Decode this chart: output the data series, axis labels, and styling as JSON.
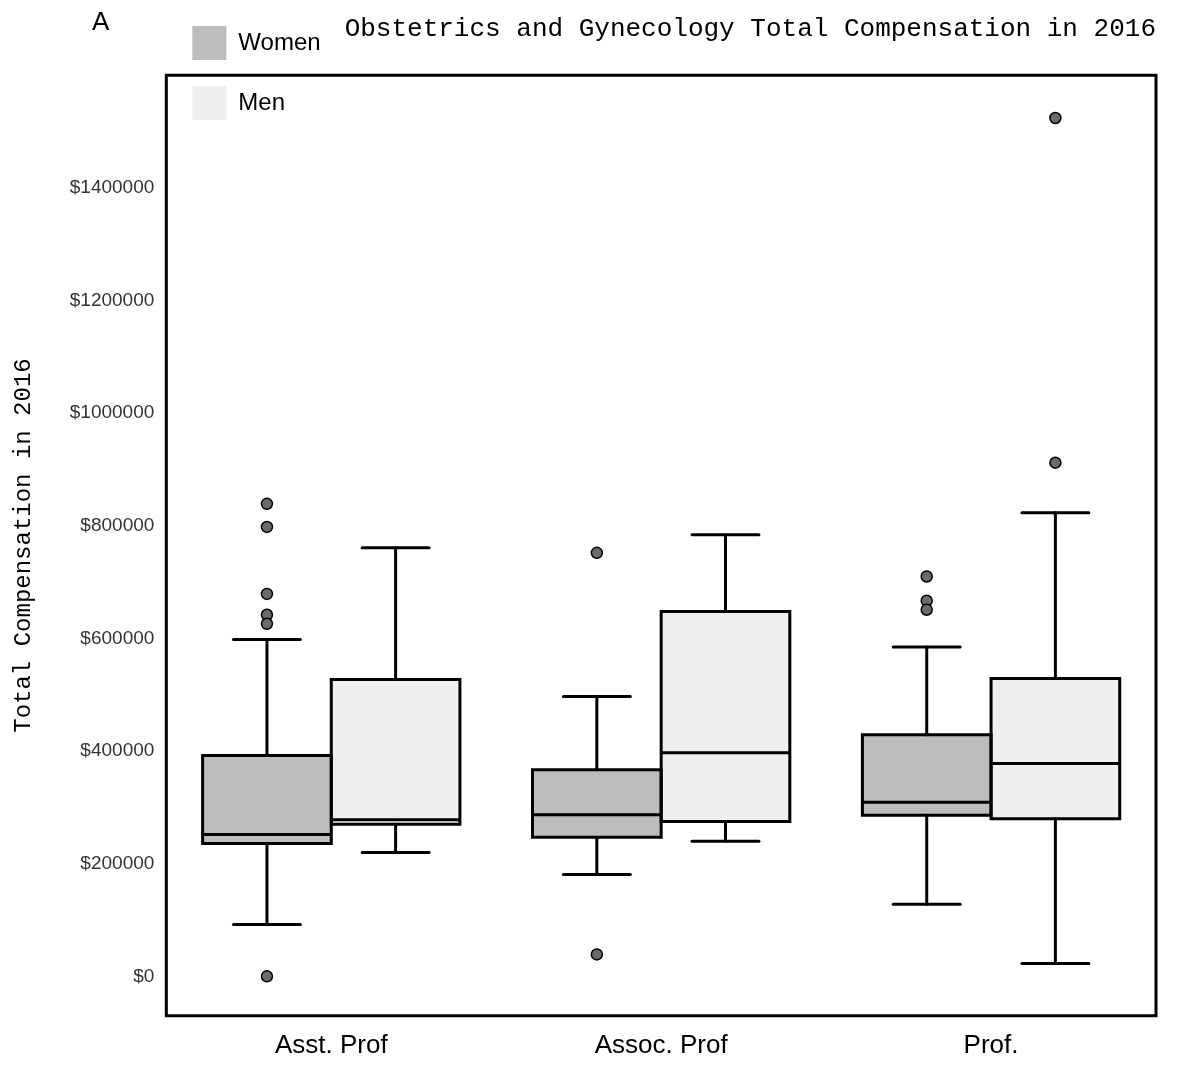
{
  "chart_data": {
    "type": "box",
    "title": "Obstetrics and Gynecology Total Compensation in 2016",
    "ylabel": "Total Compensation in 2016",
    "annotations": [
      "A"
    ],
    "categories": [
      "Asst. Prof",
      "Assoc. Prof",
      "Prof."
    ],
    "series": [
      {
        "name": "Women",
        "color": "#bdbdbd",
        "boxes": [
          {
            "low": 92000,
            "q1": 236000,
            "median": 252000,
            "q3": 392000,
            "high": 598000,
            "outliers": [
              839000,
              798000,
              679000,
              642000,
              626000,
              0
            ]
          },
          {
            "low": 181000,
            "q1": 247000,
            "median": 287000,
            "q3": 367000,
            "high": 497000,
            "outliers": [
              752000,
              39000
            ]
          },
          {
            "low": 128000,
            "q1": 286000,
            "median": 309000,
            "q3": 429000,
            "high": 585000,
            "outliers": [
              710000,
              667000,
              651000
            ]
          }
        ]
      },
      {
        "name": "Men",
        "color": "#efefef",
        "boxes": [
          {
            "low": 220000,
            "q1": 270000,
            "median": 278000,
            "q3": 527000,
            "high": 761000
          },
          {
            "low": 240000,
            "q1": 275000,
            "median": 397000,
            "q3": 648000,
            "high": 784000
          },
          {
            "low": 23000,
            "q1": 280000,
            "median": 378000,
            "q3": 529000,
            "high": 823000,
            "outliers": [
              1524000,
              912000
            ]
          }
        ]
      }
    ],
    "ylim": [
      -70000,
      1600000
    ],
    "yticks": [
      {
        "value": 0,
        "label": "$0"
      },
      {
        "value": 200000,
        "label": "$200000"
      },
      {
        "value": 400000,
        "label": "$400000"
      },
      {
        "value": 600000,
        "label": "$600000"
      },
      {
        "value": 800000,
        "label": "$800000"
      },
      {
        "value": 1000000,
        "label": "$1000000"
      },
      {
        "value": 1200000,
        "label": "$1200000"
      },
      {
        "value": 1400000,
        "label": "$1400000"
      }
    ],
    "grid": false,
    "legend": "top left"
  }
}
